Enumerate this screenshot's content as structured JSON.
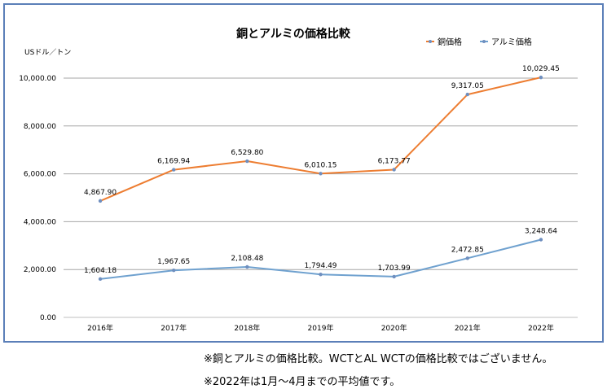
{
  "chart_data": {
    "type": "line",
    "title": "銅とアルミの価格比較",
    "ylabel": "USドル／トン",
    "xlabel": "",
    "categories": [
      "2016年",
      "2017年",
      "2018年",
      "2019年",
      "2020年",
      "2021年",
      "2022年"
    ],
    "ylim": [
      0,
      10000
    ],
    "yticks": [
      "0.00",
      "2,000.00",
      "4,000.00",
      "6,000.00",
      "8,000.00",
      "10,000.00"
    ],
    "grid": true,
    "legend_position": "top-right",
    "series": [
      {
        "name": "銅価格",
        "color": "#ed7d31",
        "values": [
          4867.9,
          6169.94,
          6529.8,
          6010.15,
          6173.77,
          9317.05,
          10029.45
        ],
        "labels": [
          "4,867.90",
          "6,169.94",
          "6,529.80",
          "6,010.15",
          "6,173.77",
          "9,317.05",
          "10,029.45"
        ]
      },
      {
        "name": "アルミ価格",
        "color": "#6fa1cf",
        "values": [
          1604.18,
          1967.65,
          2108.48,
          1794.49,
          1703.99,
          2472.85,
          3248.64
        ],
        "labels": [
          "1,604.18",
          "1,967.65",
          "2,108.48",
          "1,794.49",
          "1,703.99",
          "2,472.85",
          "3,248.64"
        ]
      }
    ]
  },
  "notes": [
    "※銅とアルミの価格比較。WCTとAL WCTの価格比較ではございません。",
    "※2022年は1月～4月までの平均値です。"
  ],
  "colors": {
    "frame": "#5b7fb8",
    "grid": "#a6a6a6"
  }
}
